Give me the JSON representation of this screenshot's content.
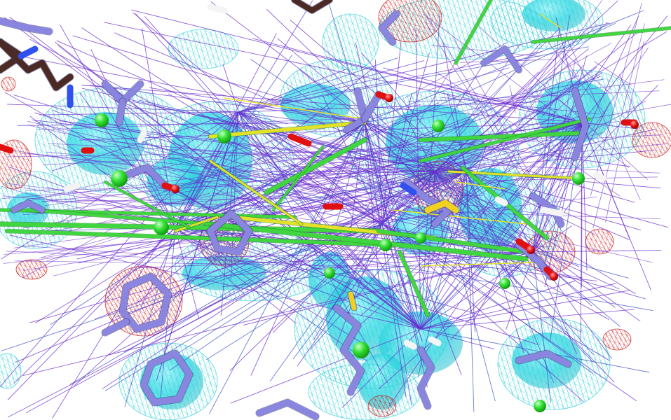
{
  "viewer": {
    "background": "#ffffff"
  },
  "palette": {
    "density_cyan": "#18d8e0",
    "density_mesh_cyan": "#3ad0d8",
    "difference_red": "#d02020",
    "contact_purple": "#6a2bd0",
    "contact_blue": "#3a4fc8",
    "hbond_green": "#3fd63f",
    "hbond_yellow": "#e2e22a",
    "carbon_slate": "#8a86e0",
    "carbon_brown": "#4a2a22",
    "oxygen_red": "#e01010",
    "nitrogen_blue": "#3050f0",
    "hydrogen_white": "#f4f4f4",
    "sulfur_yellow": "#f0d020",
    "ion_green": "#30e030"
  },
  "icons": {
    "molecule": "stick-model",
    "density": "mesh-and-surface"
  }
}
